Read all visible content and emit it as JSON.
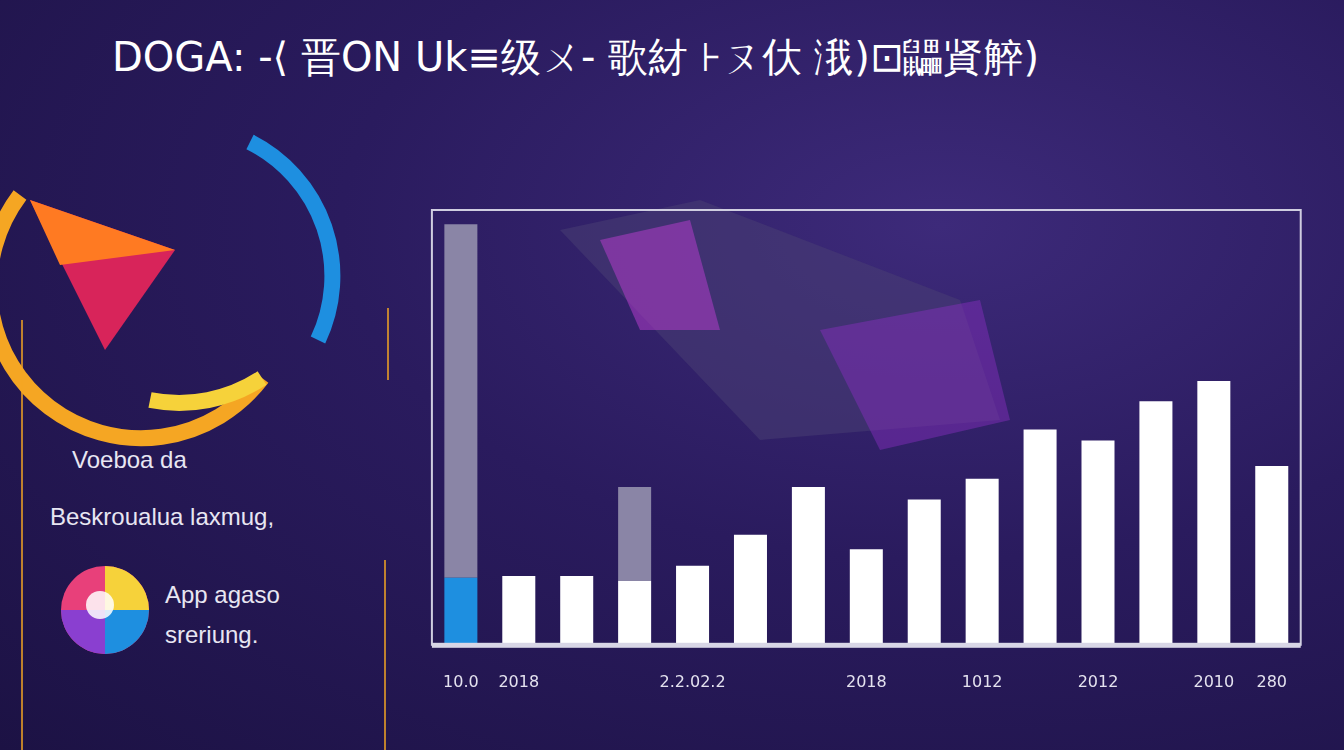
{
  "chart_data": {
    "type": "bar",
    "title": "DOGA: -⟨ 晋ON Uk≡级ㄨ- 歌䊷 ⊦ㄡ㐲 涐)⊡鼺䝨䚝)",
    "annotations": [
      "Voeboa da",
      "Beskroualua laxmug,",
      "App agaso\nsreriung."
    ],
    "categories": [
      "10.0",
      "2018",
      null,
      null,
      "2.2.02.2",
      null,
      null,
      "2018",
      null,
      "1012",
      null,
      "2012",
      null,
      "2010",
      "280"
    ],
    "series": [
      {
        "color": "#1e8fe0",
        "values": [
          15.4,
          null,
          null,
          null,
          null,
          null,
          null,
          null,
          null,
          null,
          null,
          null,
          null,
          null,
          null
        ]
      },
      {
        "color": "#ffffff",
        "values": [
          null,
          15.8,
          15.8,
          14.7,
          18.2,
          25.3,
          36.3,
          22.0,
          33.4,
          38.2,
          49.5,
          47.0,
          56.0,
          60.7,
          41.1
        ]
      },
      {
        "color": "#8a85a6",
        "values": [
          81.3,
          null,
          null,
          21.6,
          null,
          null,
          null,
          null,
          null,
          null,
          null,
          null,
          null,
          null,
          null
        ]
      }
    ],
    "ylim": [
      0,
      100
    ],
    "stacked": true,
    "grid": false,
    "tick_labels": "x"
  }
}
